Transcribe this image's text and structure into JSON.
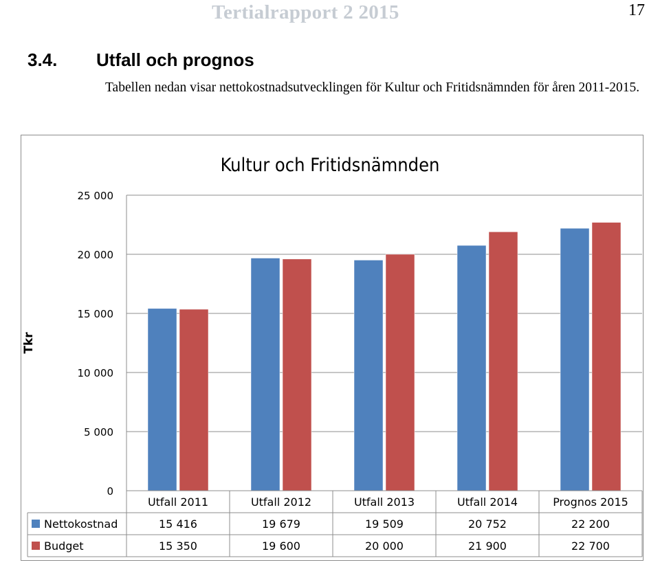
{
  "header": {
    "title": "Tertialrapport 2 2015",
    "page_number": "17"
  },
  "section": {
    "number": "3.4.",
    "title": "Utfall och prognos"
  },
  "intro_text": "Tabellen nedan visar nettokostnadsutvecklingen för Kultur och Fritidsnämnden för åren 2011-2015.",
  "colors": {
    "nettokostnad": "#4f81bd",
    "budget": "#c0504d"
  },
  "chart_data": {
    "type": "bar",
    "title": "Kultur och Fritidsnämnden",
    "xlabel": "",
    "ylabel": "Tkr",
    "ylim": [
      0,
      25000
    ],
    "y_ticks": [
      0,
      5000,
      10000,
      15000,
      20000,
      25000
    ],
    "y_tick_labels": [
      "0",
      "5 000",
      "10 000",
      "15 000",
      "20 000",
      "25 000"
    ],
    "grid": true,
    "legend": "data-table",
    "categories": [
      "Utfall 2011",
      "Utfall 2012",
      "Utfall 2013",
      "Utfall 2014",
      "Prognos 2015"
    ],
    "series": [
      {
        "name": "Nettokostnad",
        "values": [
          15416,
          19679,
          19509,
          20752,
          22200
        ],
        "labels": [
          "15 416",
          "19 679",
          "19 509",
          "20 752",
          "22 200"
        ]
      },
      {
        "name": "Budget",
        "values": [
          15350,
          19600,
          20000,
          21900,
          22700
        ],
        "labels": [
          "15 350",
          "19 600",
          "20 000",
          "21 900",
          "22 700"
        ]
      }
    ]
  }
}
